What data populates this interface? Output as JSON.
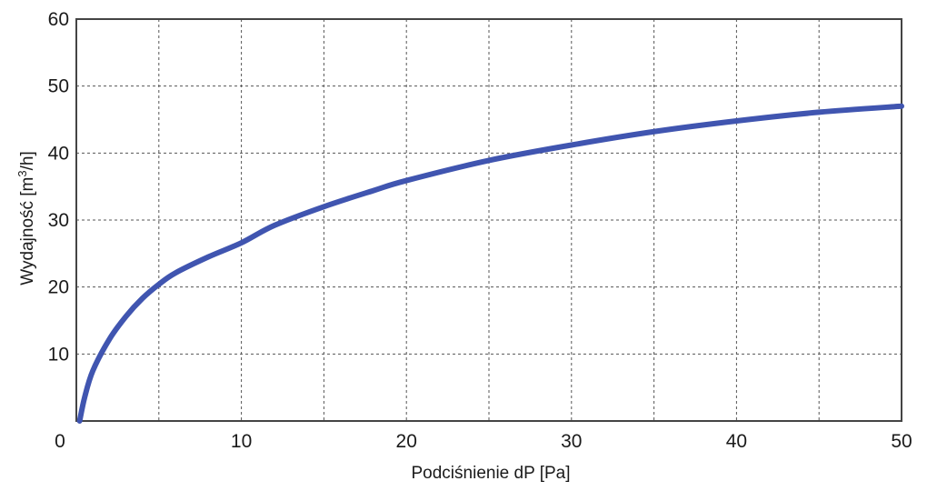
{
  "chart_data": {
    "type": "line",
    "title": "",
    "xlabel": "Podciśnienie dP [Pa]",
    "ylabel_prefix": "Wydajność [m",
    "ylabel_superscript": "3",
    "ylabel_suffix": "/h]",
    "xlim": [
      0,
      50
    ],
    "ylim": [
      0,
      60
    ],
    "xticks": [
      0,
      10,
      20,
      30,
      40,
      50
    ],
    "yticks": [
      10,
      20,
      30,
      40,
      50,
      60
    ],
    "xgrid": [
      5,
      10,
      15,
      20,
      25,
      30,
      35,
      40,
      45
    ],
    "ygrid": [
      10,
      20,
      30,
      40,
      50
    ],
    "grid": true,
    "series": [
      {
        "color": "#4055b0",
        "x": [
          0.2,
          0.5,
          1,
          2,
          3,
          4,
          5,
          6,
          8,
          10,
          12,
          15,
          18,
          20,
          25,
          30,
          35,
          40,
          45,
          50
        ],
        "y": [
          0,
          3.5,
          7.5,
          12.2,
          15.6,
          18.3,
          20.4,
          22.1,
          24.5,
          26.6,
          29.2,
          32.0,
          34.4,
          35.9,
          38.9,
          41.2,
          43.2,
          44.8,
          46.1,
          47.0
        ]
      }
    ]
  }
}
